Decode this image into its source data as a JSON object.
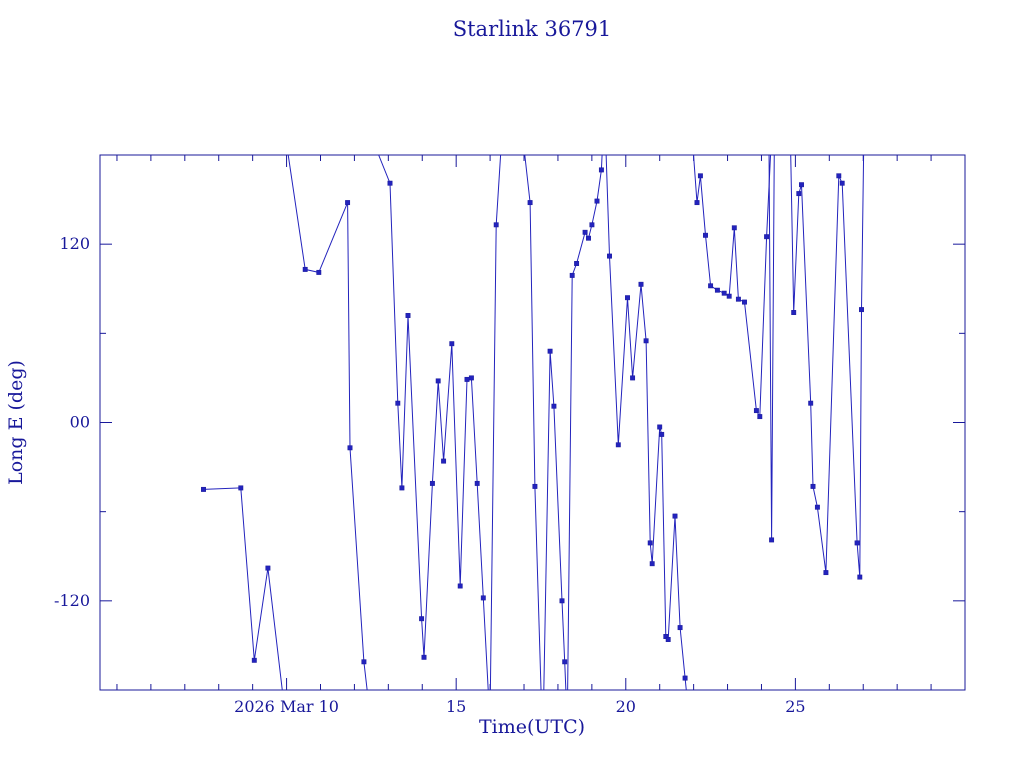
{
  "title": "Starlink 36791",
  "colors": {
    "line": "#2323bd",
    "axis": "#18189a",
    "background": "#ffffff"
  },
  "chart_data": {
    "type": "line",
    "title": "Starlink 36791",
    "xlabel": "Time(UTC)",
    "ylabel": "Long E (deg)",
    "xlim": [
      4.5,
      30
    ],
    "ylim": [
      -180,
      180
    ],
    "x_unit": "day of March 2026 (UTC)",
    "y_unit": "degrees longitude East",
    "grid": false,
    "legend": "none",
    "marker": "square",
    "x_ticks": [
      {
        "value": 10,
        "label": "2026 Mar 10"
      },
      {
        "value": 15,
        "label": "15"
      },
      {
        "value": 20,
        "label": "20"
      },
      {
        "value": 25,
        "label": "25"
      }
    ],
    "x_minor_tick_step": 1,
    "y_ticks": [
      {
        "value": 120,
        "label": "120"
      },
      {
        "value": 0,
        "label": "00"
      },
      {
        "value": -120,
        "label": "-120"
      }
    ],
    "y_minor_ticks": [
      -60,
      60
    ],
    "segments": [
      [
        [
          7.55,
          -45
        ],
        [
          8.65,
          -44
        ],
        [
          9.05,
          -160
        ],
        [
          9.45,
          -98
        ],
        [
          9.95,
          -195
        ]
      ],
      [
        [
          9.95,
          195
        ],
        [
          10.55,
          103
        ],
        [
          10.95,
          101
        ],
        [
          11.8,
          148
        ],
        [
          11.87,
          -17
        ],
        [
          12.28,
          -161
        ],
        [
          12.45,
          -195
        ]
      ],
      [
        [
          12.45,
          195
        ],
        [
          13.05,
          161
        ],
        [
          13.28,
          13
        ],
        [
          13.4,
          -44
        ],
        [
          13.58,
          72
        ],
        [
          13.98,
          -132
        ],
        [
          14.05,
          -158
        ],
        [
          14.3,
          -41
        ],
        [
          14.47,
          28
        ],
        [
          14.63,
          -26
        ],
        [
          14.87,
          53
        ],
        [
          15.12,
          -110
        ],
        [
          15.32,
          29
        ],
        [
          15.45,
          30
        ],
        [
          15.62,
          -41
        ],
        [
          15.8,
          -118
        ],
        [
          15.98,
          -195
        ]
      ],
      [
        [
          16.0,
          -195
        ],
        [
          16.18,
          133
        ],
        [
          16.35,
          195
        ]
      ],
      [
        [
          16.95,
          195
        ],
        [
          17.18,
          148
        ],
        [
          17.32,
          -43
        ],
        [
          17.52,
          -195
        ]
      ],
      [
        [
          17.57,
          -195
        ],
        [
          17.77,
          48
        ],
        [
          17.88,
          11
        ],
        [
          18.12,
          -120
        ],
        [
          18.2,
          -161
        ],
        [
          18.26,
          -195
        ]
      ],
      [
        [
          18.28,
          -195
        ],
        [
          18.42,
          99
        ],
        [
          18.55,
          107
        ],
        [
          18.8,
          128
        ],
        [
          18.9,
          124
        ],
        [
          19.0,
          133
        ],
        [
          19.15,
          149
        ],
        [
          19.28,
          170
        ],
        [
          19.33,
          195
        ]
      ],
      [
        [
          19.4,
          195
        ],
        [
          19.52,
          112
        ],
        [
          19.78,
          -15
        ],
        [
          20.05,
          84
        ],
        [
          20.2,
          30
        ],
        [
          20.45,
          93
        ],
        [
          20.6,
          55
        ],
        [
          20.72,
          -81
        ],
        [
          20.78,
          -95
        ],
        [
          21.0,
          -3
        ],
        [
          21.06,
          -8
        ],
        [
          21.18,
          -144
        ],
        [
          21.25,
          -146
        ],
        [
          21.45,
          -63
        ],
        [
          21.6,
          -138
        ],
        [
          21.75,
          -172
        ],
        [
          21.85,
          -195
        ]
      ],
      [
        [
          21.95,
          195
        ],
        [
          22.1,
          148
        ],
        [
          22.2,
          166
        ],
        [
          22.35,
          126
        ],
        [
          22.5,
          92
        ],
        [
          22.7,
          89
        ],
        [
          22.9,
          87
        ],
        [
          23.05,
          85
        ],
        [
          23.2,
          131
        ],
        [
          23.32,
          83
        ],
        [
          23.5,
          81
        ],
        [
          23.85,
          8
        ],
        [
          23.95,
          4
        ],
        [
          24.15,
          125
        ],
        [
          24.3,
          195
        ]
      ],
      [
        [
          24.22,
          195
        ],
        [
          24.3,
          -79
        ],
        [
          24.38,
          195
        ]
      ],
      [
        [
          24.85,
          195
        ],
        [
          24.95,
          74
        ],
        [
          25.1,
          154
        ],
        [
          25.18,
          160
        ],
        [
          25.45,
          13
        ],
        [
          25.52,
          -43
        ],
        [
          25.65,
          -57
        ],
        [
          25.9,
          -101
        ],
        [
          26.28,
          166
        ],
        [
          26.38,
          161
        ],
        [
          26.82,
          -81
        ],
        [
          26.9,
          -104
        ],
        [
          26.95,
          76
        ],
        [
          27.02,
          195
        ]
      ]
    ]
  }
}
